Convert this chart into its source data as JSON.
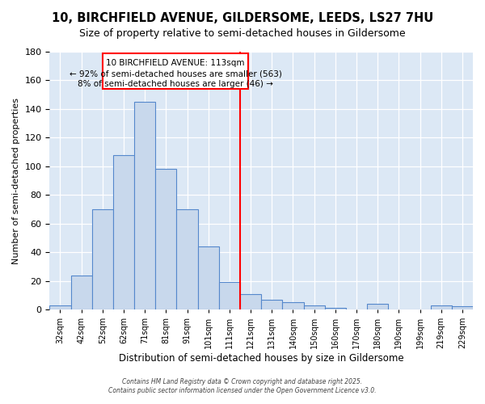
{
  "title1": "10, BIRCHFIELD AVENUE, GILDERSOME, LEEDS, LS27 7HU",
  "title2": "Size of property relative to semi-detached houses in Gildersome",
  "xlabel": "Distribution of semi-detached houses by size in Gildersome",
  "ylabel": "Number of semi-detached properties",
  "bar_labels": [
    "32sqm",
    "42sqm",
    "52sqm",
    "62sqm",
    "71sqm",
    "81sqm",
    "91sqm",
    "101sqm",
    "111sqm",
    "121sqm",
    "131sqm",
    "140sqm",
    "150sqm",
    "160sqm",
    "170sqm",
    "180sqm",
    "190sqm",
    "199sqm",
    "219sqm",
    "229sqm"
  ],
  "bar_heights": [
    3,
    24,
    70,
    108,
    145,
    98,
    70,
    44,
    19,
    11,
    7,
    5,
    3,
    1,
    0,
    4,
    0,
    0,
    3,
    2
  ],
  "bar_color": "#c8d8ec",
  "bar_edge_color": "#5588cc",
  "red_line_index": 8,
  "annotation_title": "10 BIRCHFIELD AVENUE: 113sqm",
  "annotation_line1": "← 92% of semi-detached houses are smaller (563)",
  "annotation_line2": "8% of semi-detached houses are larger (46) →",
  "ylim": [
    0,
    180
  ],
  "yticks": [
    0,
    20,
    40,
    60,
    80,
    100,
    120,
    140,
    160,
    180
  ],
  "bg_color": "#dce8f5",
  "footer1": "Contains HM Land Registry data © Crown copyright and database right 2025.",
  "footer2": "Contains public sector information licensed under the Open Government Licence v3.0."
}
